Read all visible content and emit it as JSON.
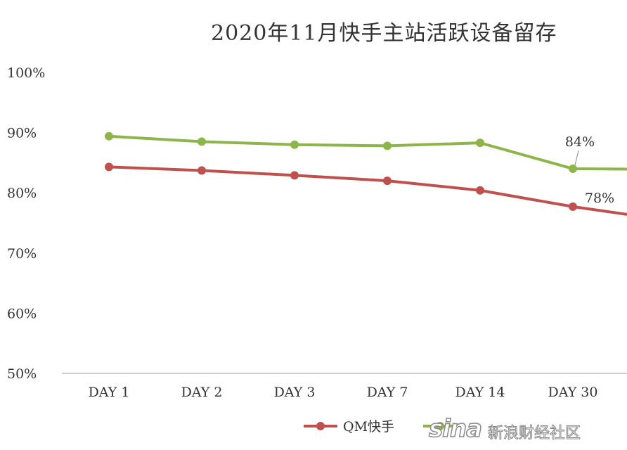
{
  "chart_data": {
    "type": "line",
    "title": "2020年11月快手主站活跃设备留存",
    "categories": [
      "DAY 1",
      "DAY 2",
      "DAY 3",
      "DAY 7",
      "DAY 14",
      "DAY 30",
      ""
    ],
    "y_ticks": [
      "100%",
      "90%",
      "80%",
      "70%",
      "60%",
      "50%"
    ],
    "ylim": [
      50,
      100
    ],
    "series": [
      {
        "name": "",
        "color": "#8db54a",
        "values": [
          89.4,
          88.5,
          88.0,
          87.8,
          88.3,
          84.0,
          83.9
        ],
        "labels": [
          "",
          "",
          "",
          "",
          "",
          "84%",
          ""
        ]
      },
      {
        "name": "QM快手",
        "color": "#c0504d",
        "values": [
          84.3,
          83.7,
          82.9,
          82.0,
          80.4,
          77.7,
          75.5
        ],
        "labels": [
          "",
          "",
          "",
          "",
          "",
          "78%",
          ""
        ]
      }
    ],
    "legend": {
      "position": "bottom"
    }
  },
  "watermark": {
    "logo": "sina",
    "text": "新浪财经社区"
  }
}
